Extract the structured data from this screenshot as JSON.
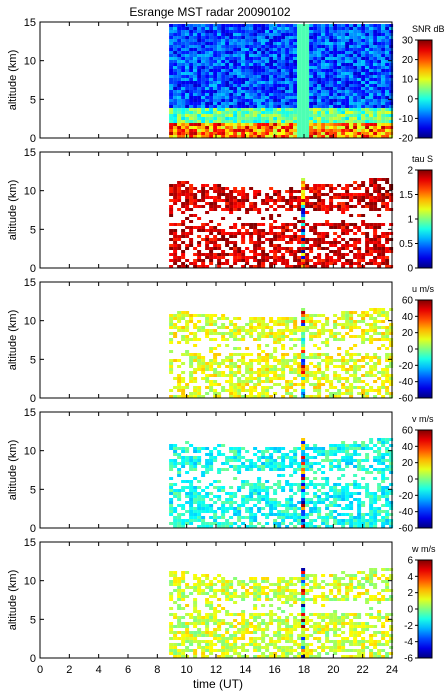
{
  "chart_data": {
    "title": "Esrange MST radar 20090102",
    "type": "heatmap",
    "xlabel": "time (UT)",
    "xlim": [
      0,
      24
    ],
    "xticks": [
      0,
      2,
      4,
      6,
      8,
      10,
      12,
      14,
      16,
      18,
      20,
      22,
      24
    ],
    "data_start_hour": 8.8,
    "panels": [
      {
        "name": "snr",
        "ylabel": "altitude (km)",
        "ylim": [
          0,
          15
        ],
        "yticks": [
          0,
          5,
          10,
          15
        ],
        "colorbar_label": "SNR dB",
        "colorbar_range": [
          -20,
          30
        ],
        "colorbar_ticks": [
          30,
          20,
          10,
          0,
          -10,
          -20
        ],
        "fill": "full",
        "color_center": 0.2
      },
      {
        "name": "tau",
        "ylabel": "altitude (km)",
        "ylim": [
          0,
          15
        ],
        "yticks": [
          0,
          5,
          10,
          15
        ],
        "colorbar_label": "tau S",
        "colorbar_range": [
          0,
          2
        ],
        "colorbar_ticks": [
          2,
          1.5,
          1,
          0.5,
          0
        ],
        "fill": "sparse",
        "color_center": 0.92
      },
      {
        "name": "u",
        "ylabel": "altitude (km)",
        "ylim": [
          0,
          15
        ],
        "yticks": [
          0,
          5,
          10,
          15
        ],
        "colorbar_label": "u m/s",
        "colorbar_range": [
          -60,
          60
        ],
        "colorbar_ticks": [
          60,
          40,
          20,
          0,
          -20,
          -40,
          -60
        ],
        "fill": "sparse",
        "color_center": 0.6
      },
      {
        "name": "v",
        "ylabel": "altitude (km)",
        "ylim": [
          0,
          15
        ],
        "yticks": [
          0,
          5,
          10,
          15
        ],
        "colorbar_label": "v m/s",
        "colorbar_range": [
          -60,
          60
        ],
        "colorbar_ticks": [
          60,
          40,
          20,
          0,
          -20,
          -40,
          -60
        ],
        "fill": "sparse",
        "color_center": 0.4
      },
      {
        "name": "w",
        "ylabel": "altitude (km)",
        "ylim": [
          0,
          15
        ],
        "yticks": [
          0,
          5,
          10,
          15
        ],
        "colorbar_label": "w m/s",
        "colorbar_range": [
          -6,
          6
        ],
        "colorbar_ticks": [
          6,
          4,
          2,
          0,
          -2,
          -4,
          -6
        ],
        "fill": "sparse",
        "color_center": 0.58
      }
    ]
  }
}
